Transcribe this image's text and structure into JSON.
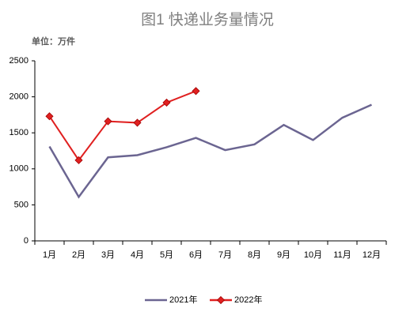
{
  "chart_data": {
    "type": "line",
    "title": "图1 快递业务量情况",
    "subtitle": "单位：万件",
    "categories": [
      "1月",
      "2月",
      "3月",
      "4月",
      "5月",
      "6月",
      "7月",
      "8月",
      "9月",
      "10月",
      "11月",
      "12月"
    ],
    "series": [
      {
        "name": "2021年",
        "color": "#6b6591",
        "values": [
          1310,
          610,
          1160,
          1190,
          1300,
          1430,
          1260,
          1340,
          1610,
          1400,
          1710,
          1890
        ]
      },
      {
        "name": "2022年",
        "color": "#e02020",
        "marker": "diamond",
        "values": [
          1730,
          1120,
          1660,
          1640,
          1920,
          2080,
          null,
          null,
          null,
          null,
          null,
          null
        ]
      }
    ],
    "ylim": [
      0,
      2500
    ],
    "yticks": [
      0,
      500,
      1000,
      1500,
      2000,
      2500
    ],
    "grid": false,
    "legend": "bottom"
  }
}
